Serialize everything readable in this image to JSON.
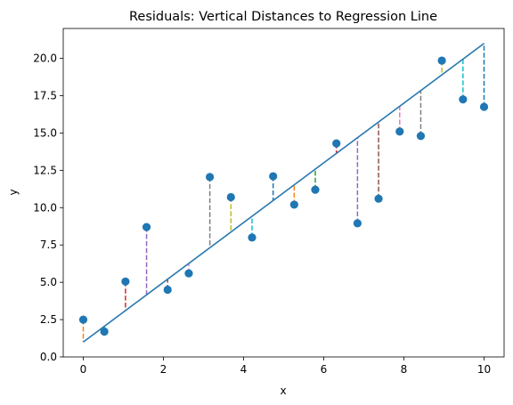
{
  "chart_data": {
    "type": "scatter",
    "title": "Residuals: Vertical Distances to Regression Line",
    "xlabel": "x",
    "ylabel": "y",
    "xlim": [
      -0.5,
      10.5
    ],
    "ylim": [
      0,
      22
    ],
    "x_ticks": [
      0,
      2,
      4,
      6,
      8,
      10
    ],
    "x_tick_labels": [
      "0",
      "2",
      "4",
      "6",
      "8",
      "10"
    ],
    "y_ticks": [
      0,
      2.5,
      5,
      7.5,
      10,
      12.5,
      15,
      17.5,
      20
    ],
    "y_tick_labels": [
      "0.0",
      "2.5",
      "5.0",
      "7.5",
      "10.0",
      "12.5",
      "15.0",
      "17.5",
      "20.0"
    ],
    "grid": false,
    "regression_line": {
      "x": [
        0,
        10
      ],
      "y": [
        1.0,
        21.0
      ],
      "color": "#2878b0"
    },
    "point_color": "#1f77b4",
    "points": [
      {
        "x": 0.0,
        "y": 2.5
      },
      {
        "x": 0.526,
        "y": 1.7
      },
      {
        "x": 1.053,
        "y": 5.05
      },
      {
        "x": 1.579,
        "y": 8.7
      },
      {
        "x": 2.105,
        "y": 4.5
      },
      {
        "x": 2.632,
        "y": 5.6
      },
      {
        "x": 3.158,
        "y": 12.05
      },
      {
        "x": 3.684,
        "y": 10.7
      },
      {
        "x": 4.211,
        "y": 8.0
      },
      {
        "x": 4.737,
        "y": 12.1
      },
      {
        "x": 5.263,
        "y": 10.2
      },
      {
        "x": 5.789,
        "y": 11.2
      },
      {
        "x": 6.316,
        "y": 14.3
      },
      {
        "x": 6.842,
        "y": 8.95
      },
      {
        "x": 7.368,
        "y": 10.6
      },
      {
        "x": 7.895,
        "y": 15.1
      },
      {
        "x": 8.421,
        "y": 14.8
      },
      {
        "x": 8.947,
        "y": 19.85
      },
      {
        "x": 9.474,
        "y": 17.25
      },
      {
        "x": 10.0,
        "y": 16.75
      }
    ],
    "residual_colors": [
      "#ff7f0e",
      "#2ca02c",
      "#d62728",
      "#9467bd",
      "#8c564b",
      "#e377c2",
      "#7f7f7f",
      "#bcbd22",
      "#17becf",
      "#1f77b4"
    ]
  }
}
